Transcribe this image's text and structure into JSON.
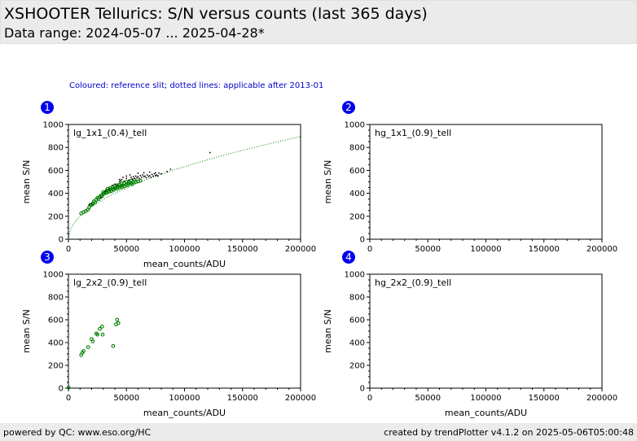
{
  "header": {
    "title": "XSHOOTER Tellurics: S/N versus counts (last 365 days)",
    "subtitle": "Data range: 2024-05-07 ... 2025-04-28*"
  },
  "note": "Coloured: reference slit; dotted lines: applicable after 2013-01",
  "footer": {
    "left": "powered by QC: www.eso.org/HC",
    "right": "created by trendPlotter v4.1.2 on 2025-05-06T05:00:48"
  },
  "colors": {
    "reference": "#008000",
    "other": "#000000",
    "badge": "#0000ee",
    "header_bg": "#ebebeb"
  },
  "chart_data": [
    {
      "type": "scatter",
      "badge": "1",
      "label": "lg_1x1_(0.4)_tell",
      "xlabel": "mean_counts/ADU",
      "ylabel": "mean S/N",
      "xlim": [
        0,
        200000
      ],
      "ylim": [
        0,
        1000
      ],
      "xticks": [
        "0",
        "50000",
        "100000",
        "150000",
        "200000"
      ],
      "yticks": [
        "0",
        "200",
        "400",
        "600",
        "800",
        "1000"
      ],
      "fit": {
        "style": "dotted",
        "color": "#008000",
        "formula": "2.0*sqrt(x)",
        "x_range": [
          0,
          200000
        ]
      },
      "series": [
        {
          "color": "#008000",
          "marker": "open-circle",
          "points": [
            [
              11000,
              225
            ],
            [
              13000,
              235
            ],
            [
              15000,
              245
            ],
            [
              18000,
              280
            ],
            [
              20000,
              300
            ],
            [
              22000,
              330
            ],
            [
              24000,
              345
            ],
            [
              25000,
              360
            ],
            [
              27000,
              370
            ],
            [
              28000,
              380
            ],
            [
              30000,
              395
            ],
            [
              31000,
              400
            ],
            [
              32000,
              410
            ],
            [
              33000,
              405
            ],
            [
              34000,
              420
            ],
            [
              35000,
              415
            ],
            [
              36000,
              430
            ],
            [
              37000,
              420
            ],
            [
              38000,
              440
            ],
            [
              39000,
              430
            ],
            [
              40000,
              445
            ],
            [
              41000,
              450
            ],
            [
              42000,
              440
            ],
            [
              43000,
              460
            ],
            [
              44000,
              450
            ],
            [
              45000,
              465
            ],
            [
              46000,
              455
            ],
            [
              47000,
              470
            ],
            [
              48000,
              460
            ],
            [
              50000,
              480
            ],
            [
              51000,
              470
            ],
            [
              52000,
              485
            ],
            [
              54000,
              490
            ],
            [
              55000,
              480
            ],
            [
              56000,
              495
            ],
            [
              58000,
              500
            ],
            [
              60000,
              505
            ],
            [
              62000,
              510
            ],
            [
              26000,
              350
            ],
            [
              29000,
              375
            ],
            [
              33000,
              425
            ],
            [
              36000,
              445
            ],
            [
              40000,
              465
            ],
            [
              44000,
              475
            ],
            [
              48000,
              490
            ],
            [
              52000,
              500
            ],
            [
              23000,
              320
            ],
            [
              21000,
              310
            ],
            [
              19000,
              300
            ],
            [
              17000,
              260
            ],
            [
              38000,
              455
            ],
            [
              42000,
              470
            ],
            [
              46000,
              485
            ],
            [
              50000,
              500
            ],
            [
              54000,
              510
            ],
            [
              57000,
              515
            ],
            [
              30000,
              410
            ],
            [
              34000,
              440
            ]
          ]
        },
        {
          "color": "#000000",
          "marker": "small-dot",
          "points": [
            [
              18000,
              300
            ],
            [
              20000,
              310
            ],
            [
              28000,
              360
            ],
            [
              32000,
              420
            ],
            [
              35000,
              440
            ],
            [
              38000,
              470
            ],
            [
              40000,
              480
            ],
            [
              42000,
              470
            ],
            [
              44000,
              500
            ],
            [
              45000,
              510
            ],
            [
              46000,
              520
            ],
            [
              48000,
              505
            ],
            [
              50000,
              530
            ],
            [
              52000,
              515
            ],
            [
              54000,
              540
            ],
            [
              55000,
              525
            ],
            [
              56000,
              545
            ],
            [
              57000,
              530
            ],
            [
              58000,
              550
            ],
            [
              59000,
              535
            ],
            [
              60000,
              545
            ],
            [
              61000,
              530
            ],
            [
              62000,
              555
            ],
            [
              63000,
              540
            ],
            [
              64000,
              560
            ],
            [
              65000,
              545
            ],
            [
              66000,
              550
            ],
            [
              67000,
              535
            ],
            [
              68000,
              560
            ],
            [
              69000,
              545
            ],
            [
              70000,
              555
            ],
            [
              71000,
              540
            ],
            [
              72000,
              565
            ],
            [
              73000,
              550
            ],
            [
              74000,
              570
            ],
            [
              75000,
              555
            ],
            [
              76000,
              560
            ],
            [
              77000,
              550
            ],
            [
              78000,
              575
            ],
            [
              80000,
              570
            ],
            [
              85000,
              590
            ],
            [
              88000,
              610
            ],
            [
              50000,
              550
            ],
            [
              53000,
              560
            ],
            [
              60000,
              575
            ],
            [
              65000,
              580
            ],
            [
              70000,
              585
            ],
            [
              75000,
              580
            ],
            [
              47000,
              540
            ],
            [
              44000,
              520
            ],
            [
              122000,
              755
            ]
          ]
        }
      ]
    },
    {
      "type": "scatter",
      "badge": "2",
      "label": "hg_1x1_(0.9)_tell",
      "xlabel": "",
      "ylabel": "mean S/N",
      "xlim": [
        0,
        200000
      ],
      "ylim": [
        0,
        1000
      ],
      "xticks": [
        "0",
        "50000",
        "100000",
        "150000",
        "200000"
      ],
      "yticks": [
        "0",
        "200",
        "400",
        "600",
        "800",
        "1000"
      ],
      "series": []
    },
    {
      "type": "scatter",
      "badge": "3",
      "label": "lg_2x2_(0.9)_tell",
      "xlabel": "mean_counts/ADU",
      "ylabel": "mean S/N",
      "xlim": [
        0,
        200000
      ],
      "ylim": [
        0,
        1000
      ],
      "xticks": [
        "0",
        "50000",
        "100000",
        "150000",
        "200000"
      ],
      "yticks": [
        "0",
        "200",
        "400",
        "600",
        "800",
        "1000"
      ],
      "series": [
        {
          "color": "#008000",
          "marker": "open-circle",
          "points": [
            [
              200,
              5
            ],
            [
              11000,
              290
            ],
            [
              12000,
              310
            ],
            [
              13000,
              325
            ],
            [
              17000,
              360
            ],
            [
              20000,
              430
            ],
            [
              21000,
              410
            ],
            [
              24000,
              480
            ],
            [
              25000,
              470
            ],
            [
              27000,
              520
            ],
            [
              29000,
              540
            ],
            [
              29500,
              470
            ],
            [
              38500,
              370
            ],
            [
              41000,
              560
            ],
            [
              42000,
              600
            ],
            [
              43000,
              570
            ]
          ]
        }
      ]
    },
    {
      "type": "scatter",
      "badge": "4",
      "label": "hg_2x2_(0.9)_tell",
      "xlabel": "mean_counts/ADU",
      "ylabel": "mean S/N",
      "xlim": [
        0,
        200000
      ],
      "ylim": [
        0,
        1000
      ],
      "xticks": [
        "0",
        "50000",
        "100000",
        "150000",
        "200000"
      ],
      "yticks": [
        "0",
        "200",
        "400",
        "600",
        "800",
        "1000"
      ],
      "series": []
    }
  ]
}
